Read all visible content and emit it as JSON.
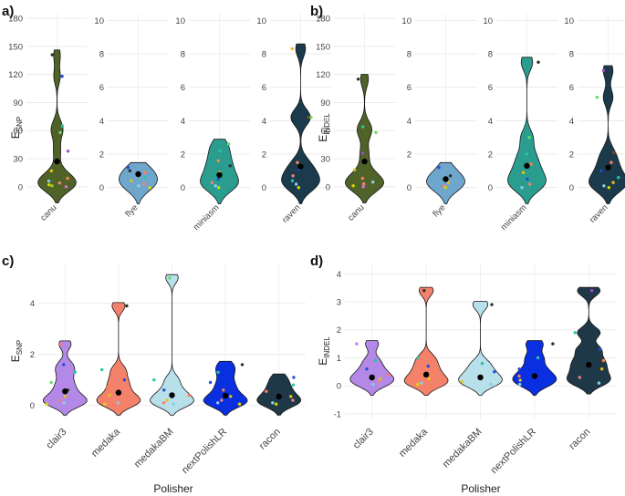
{
  "figure": {
    "panel_labels": [
      "a)",
      "b)",
      "c)",
      "d)"
    ]
  },
  "chart_data": [
    {
      "panel": "a)",
      "type": "violin",
      "facets": [
        {
          "category": "canu",
          "ylim": [
            -8,
            185
          ],
          "yticks": [
            0,
            30,
            60,
            90,
            120,
            150,
            180
          ],
          "fill": "#4f6228",
          "median": 27,
          "points": [
            {
              "y": 141,
              "c": "#2e2e2e"
            },
            {
              "y": 118,
              "c": "#1f4fd6"
            },
            {
              "y": 65,
              "c": "#29c4a8"
            },
            {
              "y": 58,
              "c": "#66dd66"
            },
            {
              "y": 38,
              "c": "#a04ad1"
            },
            {
              "y": 17,
              "c": "#e2c21c"
            },
            {
              "y": 9,
              "c": "#ff7f50"
            },
            {
              "y": 6,
              "c": "#87ceeb"
            },
            {
              "y": 4,
              "c": "#f08080"
            },
            {
              "y": 2,
              "c": "#d9d900"
            },
            {
              "y": 1,
              "c": "#9acd32"
            },
            {
              "y": 0,
              "c": "#da70d6"
            }
          ]
        },
        {
          "category": "flye",
          "ylim": [
            -0.4,
            10.4
          ],
          "yticks": [
            0,
            2,
            4,
            6,
            8,
            10
          ],
          "fill": "#6fa6cc",
          "median": 0.8,
          "points": [
            {
              "y": 1.2,
              "c": "#1f4fd6"
            },
            {
              "y": 1.0,
              "c": "#2e2e2e"
            },
            {
              "y": 0.9,
              "c": "#ff7f50"
            },
            {
              "y": 0.6,
              "c": "#29c4a8"
            },
            {
              "y": 0.4,
              "c": "#e2c21c"
            },
            {
              "y": 0.2,
              "c": "#f08080"
            },
            {
              "y": 0.1,
              "c": "#87ceeb"
            },
            {
              "y": 0.0,
              "c": "#d9d900"
            }
          ]
        },
        {
          "category": "miniasm",
          "ylim": [
            -0.4,
            10.4
          ],
          "yticks": [
            0,
            2,
            4,
            6,
            8,
            10
          ],
          "fill": "#2a9d8f",
          "median": 0.75,
          "points": [
            {
              "y": 2.6,
              "c": "#66dd66"
            },
            {
              "y": 2.2,
              "c": "#29c4a8"
            },
            {
              "y": 1.6,
              "c": "#ff7f50"
            },
            {
              "y": 1.3,
              "c": "#2e2e2e"
            },
            {
              "y": 0.9,
              "c": "#e2c21c"
            },
            {
              "y": 0.5,
              "c": "#1f4fd6"
            },
            {
              "y": 0.3,
              "c": "#f08080"
            },
            {
              "y": 0.1,
              "c": "#87ceeb"
            },
            {
              "y": 0.0,
              "c": "#d9d900"
            }
          ]
        },
        {
          "category": "raven",
          "ylim": [
            -0.4,
            10.4
          ],
          "yticks": [
            0,
            2,
            4,
            6,
            8,
            10
          ],
          "fill": "#1b3a4b",
          "median": 1.25,
          "points": [
            {
              "y": 8.3,
              "c": "#e2c21c"
            },
            {
              "y": 4.2,
              "c": "#8b4513"
            },
            {
              "y": 4.2,
              "c": "#66dd66"
            },
            {
              "y": 1.5,
              "c": "#ff7f50"
            },
            {
              "y": 1.1,
              "c": "#1f4fd6"
            },
            {
              "y": 0.7,
              "c": "#f08080"
            },
            {
              "y": 0.4,
              "c": "#29c4a8"
            },
            {
              "y": 0.2,
              "c": "#87ceeb"
            },
            {
              "y": 0.0,
              "c": "#d9d900"
            }
          ]
        }
      ]
    },
    {
      "panel": "b)",
      "type": "violin",
      "facets": [
        {
          "category": "canu",
          "ylim": [
            -8,
            185
          ],
          "yticks": [
            0,
            30,
            60,
            90,
            120,
            150,
            180
          ],
          "fill": "#4f6228",
          "median": 27,
          "points": [
            {
              "y": 115,
              "c": "#2e2e2e"
            },
            {
              "y": 64,
              "c": "#29c4a8"
            },
            {
              "y": 58,
              "c": "#66dd66"
            },
            {
              "y": 36,
              "c": "#a04ad1"
            },
            {
              "y": 18,
              "c": "#e2c21c"
            },
            {
              "y": 9,
              "c": "#ff7f50"
            },
            {
              "y": 5,
              "c": "#87ceeb"
            },
            {
              "y": 3,
              "c": "#f08080"
            },
            {
              "y": 1,
              "c": "#d9d900"
            },
            {
              "y": 0,
              "c": "#da70d6"
            }
          ]
        },
        {
          "category": "flye",
          "ylim": [
            -0.4,
            10.4
          ],
          "yticks": [
            0,
            2,
            4,
            6,
            8,
            10
          ],
          "fill": "#6fa6cc",
          "median": 0.5,
          "points": [
            {
              "y": 1.2,
              "c": "#1f4fd6"
            },
            {
              "y": 0.7,
              "c": "#2e2e2e"
            },
            {
              "y": 0.5,
              "c": "#29c4a8"
            },
            {
              "y": 0.3,
              "c": "#e2c21c"
            },
            {
              "y": 0.1,
              "c": "#f08080"
            },
            {
              "y": 0.0,
              "c": "#d9d900"
            }
          ]
        },
        {
          "category": "miniasm",
          "ylim": [
            -0.4,
            10.4
          ],
          "yticks": [
            0,
            2,
            4,
            6,
            8,
            10
          ],
          "fill": "#2a9d8f",
          "median": 1.3,
          "points": [
            {
              "y": 7.5,
              "c": "#2e2e2e"
            },
            {
              "y": 3.0,
              "c": "#66dd66"
            },
            {
              "y": 2.0,
              "c": "#29c4a8"
            },
            {
              "y": 1.4,
              "c": "#ff7f50"
            },
            {
              "y": 0.9,
              "c": "#e2c21c"
            },
            {
              "y": 0.5,
              "c": "#1f4fd6"
            },
            {
              "y": 0.2,
              "c": "#f08080"
            },
            {
              "y": 0.0,
              "c": "#87ceeb"
            }
          ]
        },
        {
          "category": "raven",
          "ylim": [
            -0.4,
            10.4
          ],
          "yticks": [
            0,
            2,
            4,
            6,
            8,
            10
          ],
          "fill": "#1b3a4b",
          "median": 1.2,
          "points": [
            {
              "y": 7.0,
              "c": "#a04ad1"
            },
            {
              "y": 5.4,
              "c": "#66dd66"
            },
            {
              "y": 2.1,
              "c": "#8b4513"
            },
            {
              "y": 1.5,
              "c": "#ff7f50"
            },
            {
              "y": 1.0,
              "c": "#1f4fd6"
            },
            {
              "y": 0.6,
              "c": "#29c4a8"
            },
            {
              "y": 0.3,
              "c": "#e2c21c"
            },
            {
              "y": 0.1,
              "c": "#87ceeb"
            },
            {
              "y": 0.0,
              "c": "#d9d900"
            }
          ]
        }
      ]
    },
    {
      "panel": "c)",
      "type": "violin",
      "xlabel": "Polisher",
      "ylim": [
        -0.55,
        5.6
      ],
      "yticks": [
        0,
        2,
        4
      ],
      "categories": [
        "clair3",
        "medaka",
        "medakaBM",
        "nextPolishLR",
        "racon"
      ],
      "fills": [
        "#b388e6",
        "#f4826b",
        "#b8e0ea",
        "#0a2fe0",
        "#1f3848"
      ],
      "medians": [
        0.55,
        0.5,
        0.4,
        0.38,
        0.35
      ],
      "points": [
        [
          {
            "y": 2.4,
            "c": "#ff7f50"
          },
          {
            "y": 1.6,
            "c": "#1f4fd6"
          },
          {
            "y": 1.3,
            "c": "#29c4a8"
          },
          {
            "y": 0.9,
            "c": "#66dd66"
          },
          {
            "y": 0.6,
            "c": "#2e2e2e"
          },
          {
            "y": 0.35,
            "c": "#e2c21c"
          },
          {
            "y": 0.2,
            "c": "#f08080"
          },
          {
            "y": 0.1,
            "c": "#87ceeb"
          },
          {
            "y": 0.05,
            "c": "#d9d900"
          }
        ],
        [
          {
            "y": 3.9,
            "c": "#2e2e2e"
          },
          {
            "y": 1.4,
            "c": "#29c4a8"
          },
          {
            "y": 1.0,
            "c": "#1f4fd6"
          },
          {
            "y": 0.7,
            "c": "#ff7f50"
          },
          {
            "y": 0.4,
            "c": "#e2c21c"
          },
          {
            "y": 0.25,
            "c": "#f08080"
          },
          {
            "y": 0.1,
            "c": "#87ceeb"
          },
          {
            "y": 0.05,
            "c": "#d9d900"
          }
        ],
        [
          {
            "y": 5.0,
            "c": "#66dd66"
          },
          {
            "y": 1.0,
            "c": "#29c4a8"
          },
          {
            "y": 0.6,
            "c": "#1f4fd6"
          },
          {
            "y": 0.4,
            "c": "#ff7f50"
          },
          {
            "y": 0.2,
            "c": "#e2c21c"
          },
          {
            "y": 0.1,
            "c": "#f08080"
          },
          {
            "y": 0.05,
            "c": "#87ceeb"
          }
        ],
        [
          {
            "y": 1.6,
            "c": "#2e2e2e"
          },
          {
            "y": 1.3,
            "c": "#29c4a8"
          },
          {
            "y": 0.9,
            "c": "#1f4fd6"
          },
          {
            "y": 0.6,
            "c": "#ff7f50"
          },
          {
            "y": 0.35,
            "c": "#e2c21c"
          },
          {
            "y": 0.2,
            "c": "#f08080"
          },
          {
            "y": 0.1,
            "c": "#87ceeb"
          },
          {
            "y": 0.05,
            "c": "#d9d900"
          }
        ],
        [
          {
            "y": 1.1,
            "c": "#1f4fd6"
          },
          {
            "y": 0.8,
            "c": "#29c4a8"
          },
          {
            "y": 0.55,
            "c": "#ff7f50"
          },
          {
            "y": 0.35,
            "c": "#e2c21c"
          },
          {
            "y": 0.2,
            "c": "#f08080"
          },
          {
            "y": 0.1,
            "c": "#87ceeb"
          },
          {
            "y": 0.05,
            "c": "#d9d900"
          }
        ]
      ]
    },
    {
      "panel": "d)",
      "type": "violin",
      "xlabel": "Polisher",
      "ylim": [
        -1.2,
        4.4
      ],
      "yticks": [
        -1,
        0,
        1,
        2,
        3,
        4
      ],
      "categories": [
        "clair3",
        "medaka",
        "medakaBM",
        "nextPolishLR",
        "racon"
      ],
      "fills": [
        "#b388e6",
        "#f4826b",
        "#b8e0ea",
        "#0a2fe0",
        "#1f3848"
      ],
      "medians": [
        0.3,
        0.4,
        0.3,
        0.35,
        0.75
      ],
      "points": [
        [
          {
            "y": 1.5,
            "c": "#b388e6"
          },
          {
            "y": 0.9,
            "c": "#29c4a8"
          },
          {
            "y": 0.6,
            "c": "#1f4fd6"
          },
          {
            "y": 0.4,
            "c": "#ff7f50"
          },
          {
            "y": 0.25,
            "c": "#e2c21c"
          },
          {
            "y": 0.15,
            "c": "#f08080"
          },
          {
            "y": 0.05,
            "c": "#87ceeb"
          }
        ],
        [
          {
            "y": 3.4,
            "c": "#2e2e2e"
          },
          {
            "y": 1.0,
            "c": "#29c4a8"
          },
          {
            "y": 0.7,
            "c": "#1f4fd6"
          },
          {
            "y": 0.45,
            "c": "#ff7f50"
          },
          {
            "y": 0.25,
            "c": "#e2c21c"
          },
          {
            "y": 0.1,
            "c": "#87ceeb"
          },
          {
            "y": 0.05,
            "c": "#d9d900"
          }
        ],
        [
          {
            "y": 2.9,
            "c": "#2e2e2e"
          },
          {
            "y": 0.8,
            "c": "#29c4a8"
          },
          {
            "y": 0.5,
            "c": "#1f4fd6"
          },
          {
            "y": 0.3,
            "c": "#ff7f50"
          },
          {
            "y": 0.15,
            "c": "#e2c21c"
          },
          {
            "y": 0.05,
            "c": "#87ceeb"
          }
        ],
        [
          {
            "y": 1.5,
            "c": "#2e2e2e"
          },
          {
            "y": 1.0,
            "c": "#29c4a8"
          },
          {
            "y": 0.6,
            "c": "#1f4fd6"
          },
          {
            "y": 0.35,
            "c": "#ff7f50"
          },
          {
            "y": 0.2,
            "c": "#e2c21c"
          },
          {
            "y": 0.05,
            "c": "#87ceeb"
          }
        ],
        [
          {
            "y": 3.4,
            "c": "#a04ad1"
          },
          {
            "y": 1.9,
            "c": "#29c4a8"
          },
          {
            "y": 1.3,
            "c": "#1f4fd6"
          },
          {
            "y": 0.9,
            "c": "#ff7f50"
          },
          {
            "y": 0.6,
            "c": "#e2c21c"
          },
          {
            "y": 0.3,
            "c": "#f08080"
          },
          {
            "y": 0.1,
            "c": "#87ceeb"
          }
        ]
      ]
    }
  ]
}
